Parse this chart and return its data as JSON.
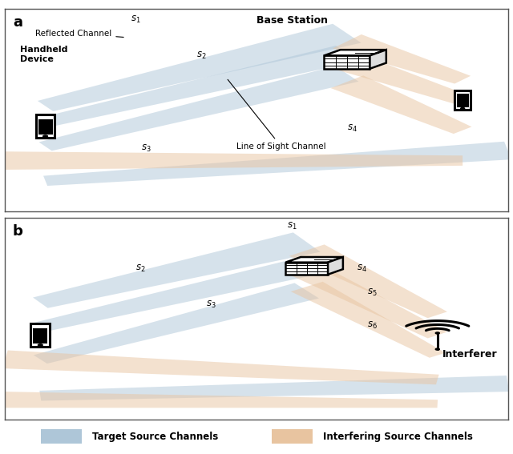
{
  "blue_color": "#aec6d8",
  "orange_color": "#e8c4a0",
  "blue_alpha": 0.5,
  "orange_alpha": 0.5,
  "fig_width": 6.4,
  "fig_height": 5.67,
  "dpi": 100,
  "panel_a": {
    "hd": [
      0.08,
      0.42
    ],
    "bs": [
      0.68,
      0.77
    ],
    "inf": [
      0.91,
      0.55
    ],
    "blue_beams": [
      [
        0.08,
        0.52,
        0.68,
        0.88,
        0.03,
        0.055
      ],
      [
        0.08,
        0.44,
        0.68,
        0.78,
        0.025,
        0.045
      ],
      [
        0.08,
        0.32,
        0.68,
        0.68,
        0.025,
        0.045
      ],
      [
        0.08,
        0.15,
        1.0,
        0.3,
        0.025,
        0.045
      ]
    ],
    "orange_beams": [
      [
        0.91,
        0.65,
        0.68,
        0.84,
        0.025,
        0.045
      ],
      [
        0.91,
        0.55,
        0.68,
        0.74,
        0.025,
        0.045
      ],
      [
        0.91,
        0.4,
        0.68,
        0.64,
        0.025,
        0.045
      ],
      [
        0.91,
        0.25,
        0.0,
        0.25,
        0.025,
        0.045
      ]
    ]
  },
  "panel_b": {
    "hd": [
      0.07,
      0.42
    ],
    "bs": [
      0.6,
      0.78
    ],
    "inf": [
      0.86,
      0.38
    ],
    "blue_beams": [
      [
        0.07,
        0.58,
        0.6,
        0.88,
        0.03,
        0.055
      ],
      [
        0.07,
        0.46,
        0.6,
        0.76,
        0.025,
        0.045
      ],
      [
        0.07,
        0.3,
        0.6,
        0.64,
        0.025,
        0.045
      ],
      [
        0.07,
        0.12,
        1.0,
        0.18,
        0.025,
        0.04
      ]
    ],
    "orange_beams": [
      [
        0.86,
        0.52,
        0.6,
        0.84,
        0.025,
        0.045
      ],
      [
        0.86,
        0.42,
        0.6,
        0.74,
        0.025,
        0.04
      ],
      [
        0.86,
        0.32,
        0.6,
        0.66,
        0.02,
        0.04
      ],
      [
        0.86,
        0.2,
        0.0,
        0.3,
        0.025,
        0.045
      ],
      [
        0.86,
        0.08,
        0.0,
        0.1,
        0.02,
        0.04
      ]
    ]
  }
}
